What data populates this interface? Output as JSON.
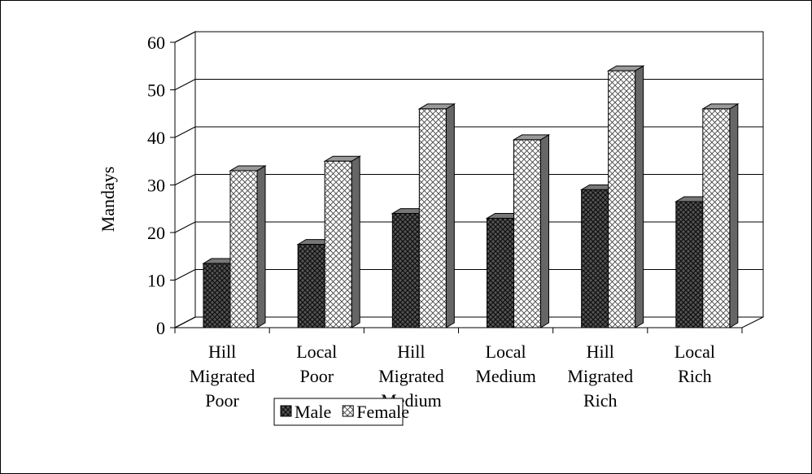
{
  "chart_data": {
    "type": "bar3d",
    "y_label": "Mandays",
    "categories": [
      "Hill Migrated Poor",
      "Local Poor",
      "Hill Migrated Medium",
      "Local Medium",
      "Hill Migrated Rich",
      "Local Rich"
    ],
    "series": [
      {
        "name": "Male",
        "color": "#333333",
        "values": [
          13.5,
          17.5,
          24,
          23,
          29,
          26.5
        ]
      },
      {
        "name": "Female",
        "color": "#bbbbbb",
        "values": [
          33,
          35,
          46,
          39.5,
          54,
          46
        ]
      }
    ],
    "ylim": [
      0,
      60
    ],
    "yticks": [
      0,
      10,
      20,
      30,
      40,
      50,
      60
    ],
    "grid": true,
    "legend": "bottom"
  }
}
